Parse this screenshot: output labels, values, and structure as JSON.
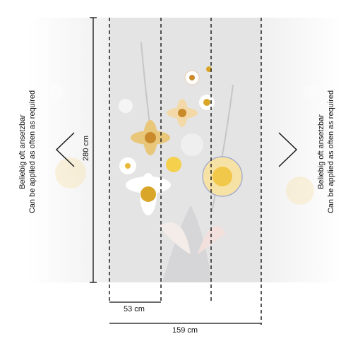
{
  "dimensions": {
    "height": "280 cm",
    "panel_width": "53 cm",
    "total_width": "159 cm"
  },
  "repeat_note": {
    "left": {
      "de": "Beliebig oft ansetzbar",
      "en": "Can be applied as often as required"
    },
    "right": {
      "de": "Beliebig oft ansetzbar",
      "en": "Can be applied as often as required"
    }
  }
}
